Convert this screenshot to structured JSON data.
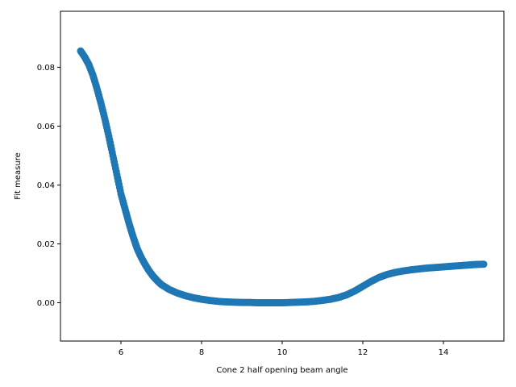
{
  "chart_data": {
    "type": "scatter",
    "title": "",
    "xlabel": "Cone 2 half opening beam angle",
    "ylabel": "Fit measure",
    "xlim": [
      4.5,
      15.5
    ],
    "ylim": [
      -0.013,
      0.099
    ],
    "xticks": [
      6,
      8,
      10,
      12,
      14
    ],
    "yticks": [
      0.0,
      0.02,
      0.04,
      0.06,
      0.08
    ],
    "ytick_labels": [
      "0.00",
      "0.02",
      "0.04",
      "0.06",
      "0.08"
    ],
    "grid": false,
    "legend": "none",
    "marker_color": "#1f77b4",
    "series": [
      {
        "x": [
          5.0,
          5.1,
          5.2,
          5.3,
          5.4,
          5.5,
          5.6,
          5.7,
          5.8,
          5.9,
          6.0,
          6.1,
          6.2,
          6.3,
          6.4,
          6.5,
          6.6,
          6.7,
          6.8,
          6.9,
          7.0,
          7.2,
          7.4,
          7.6,
          7.8,
          8.0,
          8.2,
          8.4,
          8.6,
          8.8,
          9.0,
          9.2,
          9.4,
          9.6,
          9.8,
          10.0,
          10.2,
          10.4,
          10.6,
          10.8,
          11.0,
          11.2,
          11.4,
          11.6,
          11.8,
          12.0,
          12.2,
          12.4,
          12.6,
          12.8,
          13.0,
          13.2,
          13.4,
          13.6,
          13.8,
          14.0,
          14.2,
          14.4,
          14.6,
          14.8,
          15.0
        ],
        "y": [
          0.0855,
          0.0835,
          0.081,
          0.0775,
          0.073,
          0.068,
          0.0625,
          0.0565,
          0.05,
          0.0435,
          0.037,
          0.032,
          0.027,
          0.0225,
          0.0185,
          0.0155,
          0.013,
          0.0108,
          0.009,
          0.0075,
          0.0062,
          0.0045,
          0.0033,
          0.0024,
          0.0017,
          0.0012,
          0.0008,
          0.0005,
          0.0003,
          0.0002,
          0.0001,
          0.0001,
          0.0,
          0.0,
          0.0,
          0.0,
          0.0001,
          0.0002,
          0.0003,
          0.0005,
          0.0008,
          0.0012,
          0.0018,
          0.0027,
          0.004,
          0.0056,
          0.0072,
          0.0086,
          0.0096,
          0.0103,
          0.0108,
          0.0112,
          0.0115,
          0.0118,
          0.012,
          0.0122,
          0.0124,
          0.0126,
          0.0128,
          0.013,
          0.0131
        ]
      }
    ]
  }
}
